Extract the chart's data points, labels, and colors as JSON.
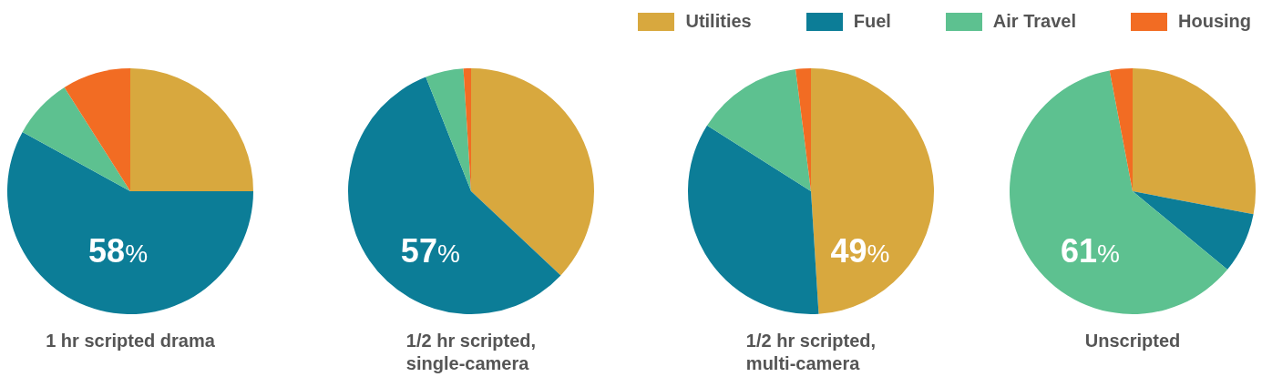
{
  "chart_data": [
    {
      "type": "pie",
      "title": "1 hr scripted drama",
      "categories": [
        "Utilities",
        "Fuel",
        "Air Travel",
        "Housing"
      ],
      "values": [
        25,
        58,
        8,
        9
      ],
      "colors": [
        "#d8a83e",
        "#0c7d97",
        "#5dc190",
        "#f26c23"
      ],
      "value_labels": [
        null,
        "58%",
        null,
        null
      ],
      "legend": "top right"
    },
    {
      "type": "pie",
      "title": "1/2 hr scripted, single-camera",
      "categories": [
        null,
        null,
        null,
        null
      ],
      "values": [
        37,
        57,
        5,
        1
      ],
      "colors": [
        "#d8a83e",
        "#0c7d97",
        "#5dc190",
        "#f26c23"
      ],
      "value_labels": [
        null,
        "57%",
        null,
        null
      ]
    },
    {
      "type": "pie",
      "title": "1/2 hr scripted, multi-camera",
      "categories": [
        null,
        null,
        null,
        null
      ],
      "values": [
        49,
        35,
        14,
        2
      ],
      "colors": [
        "#d8a83e",
        "#0c7d97",
        "#5dc190",
        "#f26c23"
      ],
      "value_labels": [
        "49%",
        null,
        null,
        null
      ]
    },
    {
      "type": "pie",
      "title": "Unscripted",
      "categories": [
        null,
        null,
        null,
        null
      ],
      "values": [
        28,
        8,
        61,
        3
      ],
      "colors": [
        "#d8a83e",
        "#0c7d97",
        "#5dc190",
        "#f26c23"
      ],
      "value_labels": [
        null,
        null,
        "61%",
        null
      ]
    }
  ]
}
